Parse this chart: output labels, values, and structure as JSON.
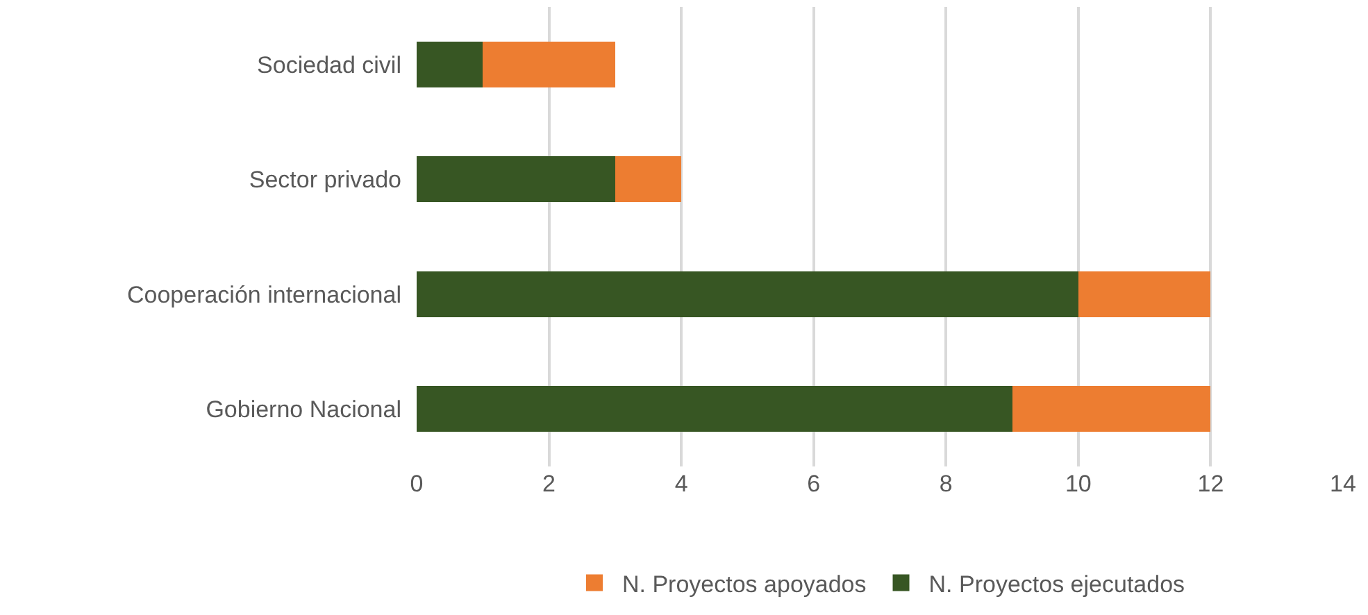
{
  "chart_data": {
    "type": "bar",
    "orientation": "horizontal",
    "stacked": true,
    "categories": [
      "Sociedad civil",
      "Sector privado",
      "Cooperación internacional",
      "Gobierno Nacional"
    ],
    "series": [
      {
        "name": "N. Proyectos ejecutados",
        "color": "#375623",
        "values": [
          1,
          3,
          10,
          9
        ]
      },
      {
        "name": "N. Proyectos apoyados",
        "color": "#ed7d31",
        "values": [
          2,
          1,
          2,
          3
        ]
      }
    ],
    "xlim": [
      0,
      14
    ],
    "xticks": [
      0,
      2,
      4,
      6,
      8,
      10,
      12,
      14
    ],
    "grid": "x",
    "legend": "bottom"
  }
}
